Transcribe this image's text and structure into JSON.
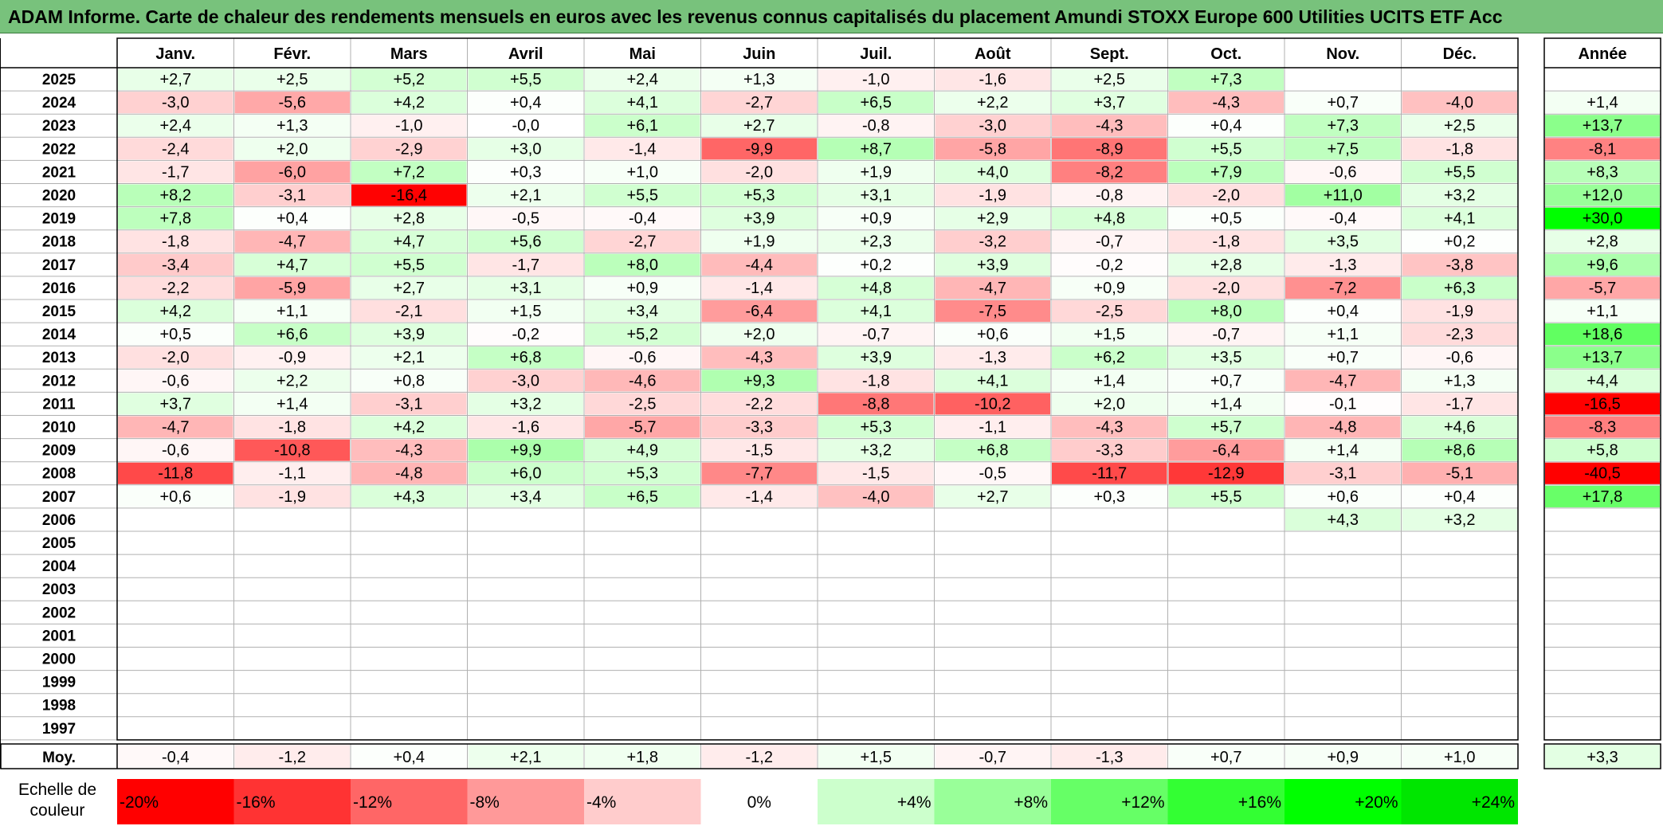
{
  "title": "ADAM Informe. Carte de chaleur des rendements mensuels en euros avec les revenus connus capitalisés du placement Amundi STOXX Europe 600 Utilities UCITS ETF Acc",
  "chart_data": {
    "type": "heatmap",
    "columns": [
      "Janv.",
      "Févr.",
      "Mars",
      "Avril",
      "Mai",
      "Juin",
      "Juil.",
      "Août",
      "Sept.",
      "Oct.",
      "Nov.",
      "Déc."
    ],
    "year_column_label": "Année",
    "average_row_label": "Moy.",
    "rows": [
      {
        "year": "2025",
        "values": [
          2.7,
          2.5,
          5.2,
          5.5,
          2.4,
          1.3,
          -1.0,
          -1.6,
          2.5,
          7.3,
          null,
          null
        ],
        "annual": null
      },
      {
        "year": "2024",
        "values": [
          -3.0,
          -5.6,
          4.2,
          0.4,
          4.1,
          -2.7,
          6.5,
          2.2,
          3.7,
          -4.3,
          0.7,
          -4.0
        ],
        "annual": 1.4
      },
      {
        "year": "2023",
        "values": [
          2.4,
          1.3,
          -1.0,
          -0.0,
          6.1,
          2.7,
          -0.8,
          -3.0,
          -4.3,
          0.4,
          7.3,
          2.5
        ],
        "annual": 13.7
      },
      {
        "year": "2022",
        "values": [
          -2.4,
          2.0,
          -2.9,
          3.0,
          -1.4,
          -9.9,
          8.7,
          -5.8,
          -8.9,
          5.5,
          7.5,
          -1.8
        ],
        "annual": -8.1
      },
      {
        "year": "2021",
        "values": [
          -1.7,
          -6.0,
          7.2,
          0.3,
          1.0,
          -2.0,
          1.9,
          4.0,
          -8.2,
          7.9,
          -0.6,
          5.5
        ],
        "annual": 8.3
      },
      {
        "year": "2020",
        "values": [
          8.2,
          -3.1,
          -16.4,
          2.1,
          5.5,
          5.3,
          3.1,
          -1.9,
          -0.8,
          -2.0,
          11.0,
          3.2
        ],
        "annual": 12.0
      },
      {
        "year": "2019",
        "values": [
          7.8,
          0.4,
          2.8,
          -0.5,
          -0.4,
          3.9,
          0.9,
          2.9,
          4.8,
          0.5,
          -0.4,
          4.1
        ],
        "annual": 30.0
      },
      {
        "year": "2018",
        "values": [
          -1.8,
          -4.7,
          4.7,
          5.6,
          -2.7,
          1.9,
          2.3,
          -3.2,
          -0.7,
          -1.8,
          3.5,
          0.2
        ],
        "annual": 2.8
      },
      {
        "year": "2017",
        "values": [
          -3.4,
          4.7,
          5.5,
          -1.7,
          8.0,
          -4.4,
          0.2,
          3.9,
          -0.2,
          2.8,
          -1.3,
          -3.8
        ],
        "annual": 9.6
      },
      {
        "year": "2016",
        "values": [
          -2.2,
          -5.9,
          2.7,
          3.1,
          0.9,
          -1.4,
          4.8,
          -4.7,
          0.9,
          -2.0,
          -7.2,
          6.3
        ],
        "annual": -5.7
      },
      {
        "year": "2015",
        "values": [
          4.2,
          1.1,
          -2.1,
          1.5,
          3.4,
          -6.4,
          4.1,
          -7.5,
          -2.5,
          8.0,
          0.4,
          -1.9
        ],
        "annual": 1.1
      },
      {
        "year": "2014",
        "values": [
          0.5,
          6.6,
          3.9,
          -0.2,
          5.2,
          2.0,
          -0.7,
          0.6,
          1.5,
          -0.7,
          1.1,
          -2.3
        ],
        "annual": 18.6
      },
      {
        "year": "2013",
        "values": [
          -2.0,
          -0.9,
          2.1,
          6.8,
          -0.6,
          -4.3,
          3.9,
          -1.3,
          6.2,
          3.5,
          0.7,
          -0.6
        ],
        "annual": 13.7
      },
      {
        "year": "2012",
        "values": [
          -0.6,
          2.2,
          0.8,
          -3.0,
          -4.6,
          9.3,
          -1.8,
          4.1,
          1.4,
          0.7,
          -4.7,
          1.3
        ],
        "annual": 4.4
      },
      {
        "year": "2011",
        "values": [
          3.7,
          1.4,
          -3.1,
          3.2,
          -2.5,
          -2.2,
          -8.8,
          -10.2,
          2.0,
          1.4,
          -0.1,
          -1.7
        ],
        "annual": -16.5
      },
      {
        "year": "2010",
        "values": [
          -4.7,
          -1.8,
          4.2,
          -1.6,
          -5.7,
          -3.3,
          5.3,
          -1.1,
          -4.3,
          5.7,
          -4.8,
          4.6
        ],
        "annual": -8.3
      },
      {
        "year": "2009",
        "values": [
          -0.6,
          -10.8,
          -4.3,
          9.9,
          4.9,
          -1.5,
          3.2,
          6.8,
          -3.3,
          -6.4,
          1.4,
          8.6
        ],
        "annual": 5.8
      },
      {
        "year": "2008",
        "values": [
          -11.8,
          -1.1,
          -4.8,
          6.0,
          5.3,
          -7.7,
          -1.5,
          -0.5,
          -11.7,
          -12.9,
          -3.1,
          -5.1
        ],
        "annual": -40.5
      },
      {
        "year": "2007",
        "values": [
          0.6,
          -1.9,
          4.3,
          3.4,
          6.5,
          -1.4,
          -4.0,
          2.7,
          0.3,
          5.5,
          0.6,
          0.4
        ],
        "annual": 17.8
      },
      {
        "year": "2006",
        "values": [
          null,
          null,
          null,
          null,
          null,
          null,
          null,
          null,
          null,
          null,
          4.3,
          3.2
        ],
        "annual": null
      },
      {
        "year": "2005",
        "values": [
          null,
          null,
          null,
          null,
          null,
          null,
          null,
          null,
          null,
          null,
          null,
          null
        ],
        "annual": null
      },
      {
        "year": "2004",
        "values": [
          null,
          null,
          null,
          null,
          null,
          null,
          null,
          null,
          null,
          null,
          null,
          null
        ],
        "annual": null
      },
      {
        "year": "2003",
        "values": [
          null,
          null,
          null,
          null,
          null,
          null,
          null,
          null,
          null,
          null,
          null,
          null
        ],
        "annual": null
      },
      {
        "year": "2002",
        "values": [
          null,
          null,
          null,
          null,
          null,
          null,
          null,
          null,
          null,
          null,
          null,
          null
        ],
        "annual": null
      },
      {
        "year": "2001",
        "values": [
          null,
          null,
          null,
          null,
          null,
          null,
          null,
          null,
          null,
          null,
          null,
          null
        ],
        "annual": null
      },
      {
        "year": "2000",
        "values": [
          null,
          null,
          null,
          null,
          null,
          null,
          null,
          null,
          null,
          null,
          null,
          null
        ],
        "annual": null
      },
      {
        "year": "1999",
        "values": [
          null,
          null,
          null,
          null,
          null,
          null,
          null,
          null,
          null,
          null,
          null,
          null
        ],
        "annual": null
      },
      {
        "year": "1998",
        "values": [
          null,
          null,
          null,
          null,
          null,
          null,
          null,
          null,
          null,
          null,
          null,
          null
        ],
        "annual": null
      },
      {
        "year": "1997",
        "values": [
          null,
          null,
          null,
          null,
          null,
          null,
          null,
          null,
          null,
          null,
          null,
          null
        ],
        "annual": null
      }
    ],
    "averages": [
      -0.4,
      -1.2,
      0.4,
      2.1,
      1.8,
      -1.2,
      1.5,
      -0.7,
      -1.3,
      0.7,
      0.9,
      1.0
    ],
    "average_annual": 3.3,
    "color_scale": {
      "label": "Echelle de couleur",
      "stops": [
        {
          "label": "-20%",
          "value": -20,
          "color": "#ff0000"
        },
        {
          "label": "-16%",
          "value": -16,
          "color": "#ff3333"
        },
        {
          "label": "-12%",
          "value": -12,
          "color": "#ff6666"
        },
        {
          "label": "-8%",
          "value": -8,
          "color": "#ff9999"
        },
        {
          "label": "-4%",
          "value": -4,
          "color": "#ffcccc"
        },
        {
          "label": "0%",
          "value": 0,
          "color": "#ffffff"
        },
        {
          "label": "+4%",
          "value": 4,
          "color": "#ccffcc"
        },
        {
          "label": "+8%",
          "value": 8,
          "color": "#99ff99"
        },
        {
          "label": "+12%",
          "value": 12,
          "color": "#66ff66"
        },
        {
          "label": "+16%",
          "value": 16,
          "color": "#33ff33"
        },
        {
          "label": "+20%",
          "value": 20,
          "color": "#00ff00"
        },
        {
          "label": "+24%",
          "value": 24,
          "color": "#00e600"
        }
      ]
    }
  }
}
